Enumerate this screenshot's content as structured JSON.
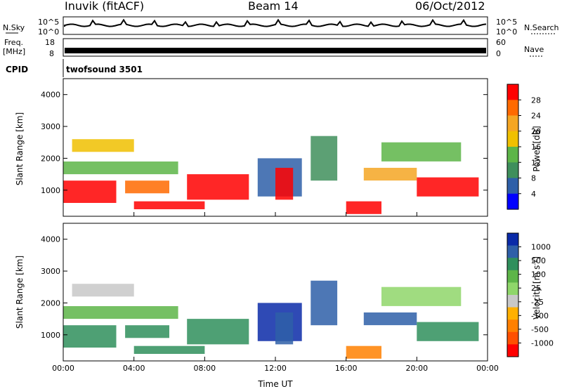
{
  "header": {
    "station": "Inuvik (fitACF)",
    "beam": "Beam 14",
    "date": "06/Oct/2012"
  },
  "status_panels": {
    "nsky_label": "N.Sky",
    "nsky_ticks": [
      "10^5",
      "10^0"
    ],
    "nsearch_label": "N.Search",
    "nsearch_ticks": [
      "10^5",
      "10^0"
    ],
    "freq_label_1": "Freq.",
    "freq_label_2": "[MHz]",
    "freq_ticks": [
      "18",
      "8"
    ],
    "nave_label": "Nave",
    "nave_ticks": [
      "60",
      "0"
    ],
    "cpid_label": "CPID",
    "cpid_value": "twofsound 3501"
  },
  "chart_data": [
    {
      "type": "heatmap",
      "parameter": "power",
      "ylabel": "Slant Range [km]",
      "xlabel": "",
      "ylim": [
        180,
        4500
      ],
      "xlim": [
        0,
        24
      ],
      "yticks": [
        "1000",
        "2000",
        "3000",
        "4000"
      ],
      "colorbar_label": "Power [dB]",
      "colorbar_ticks": [
        "28",
        "24",
        "20",
        "16",
        "12",
        "8",
        "4"
      ],
      "colorbar_colors": [
        "#ff0000",
        "#ff6a00",
        "#f5a623",
        "#f0c000",
        "#5db548",
        "#3f8f5c",
        "#2e5fa8",
        "#0000ff"
      ],
      "segments": [
        {
          "t0": 0.0,
          "t1": 3.0,
          "r0": 600,
          "r1": 1300,
          "level": 0
        },
        {
          "t0": 0.5,
          "t1": 4.0,
          "r0": 2200,
          "r1": 2600,
          "level": 3
        },
        {
          "t0": 0.0,
          "t1": 6.5,
          "r0": 1500,
          "r1": 1900,
          "level": 4
        },
        {
          "t0": 3.5,
          "t1": 6.0,
          "r0": 900,
          "r1": 1300,
          "level": 1
        },
        {
          "t0": 7.0,
          "t1": 10.5,
          "r0": 700,
          "r1": 1500,
          "level": 0
        },
        {
          "t0": 4.0,
          "t1": 8.0,
          "r0": 400,
          "r1": 650,
          "level": 0
        },
        {
          "t0": 11.0,
          "t1": 13.5,
          "r0": 800,
          "r1": 2000,
          "level": 6
        },
        {
          "t0": 12.0,
          "t1": 13.0,
          "r0": 700,
          "r1": 1700,
          "level": 0
        },
        {
          "t0": 14.0,
          "t1": 15.5,
          "r0": 1300,
          "r1": 2700,
          "level": 5
        },
        {
          "t0": 16.0,
          "t1": 18.0,
          "r0": 250,
          "r1": 650,
          "level": 0
        },
        {
          "t0": 17.0,
          "t1": 20.0,
          "r0": 1300,
          "r1": 1700,
          "level": 2
        },
        {
          "t0": 20.0,
          "t1": 23.5,
          "r0": 800,
          "r1": 1400,
          "level": 0
        },
        {
          "t0": 18.0,
          "t1": 22.5,
          "r0": 1900,
          "r1": 2500,
          "level": 4
        }
      ]
    },
    {
      "type": "heatmap",
      "parameter": "velocity",
      "ylabel": "Slant Range [km]",
      "xlabel": "Time UT",
      "ylim": [
        180,
        4500
      ],
      "xlim": [
        0,
        24
      ],
      "yticks": [
        "1000",
        "2000",
        "3000",
        "4000"
      ],
      "xticks": [
        "00:00",
        "04:00",
        "08:00",
        "12:00",
        "16:00",
        "20:00",
        "00:00"
      ],
      "colorbar_label": "Velocity [m s-1]",
      "colorbar_ticks": [
        "1000",
        "500",
        "100",
        "25",
        "-25",
        "-100",
        "-500",
        "-1000"
      ],
      "colorbar_colors": [
        "#0a2aa8",
        "#2e5fa8",
        "#2f8f5c",
        "#5db548",
        "#8fd66a",
        "#c8c8c8",
        "#ffb000",
        "#ff8000",
        "#ff5000",
        "#ff0000"
      ],
      "segments": [
        {
          "t0": 0.0,
          "t1": 3.0,
          "r0": 600,
          "r1": 1300,
          "level": 2
        },
        {
          "t0": 0.5,
          "t1": 4.0,
          "r0": 2200,
          "r1": 2600,
          "level": 5
        },
        {
          "t0": 0.0,
          "t1": 6.5,
          "r0": 1500,
          "r1": 1900,
          "level": 3
        },
        {
          "t0": 3.5,
          "t1": 6.0,
          "r0": 900,
          "r1": 1300,
          "level": 2
        },
        {
          "t0": 7.0,
          "t1": 10.5,
          "r0": 700,
          "r1": 1500,
          "level": 2
        },
        {
          "t0": 4.0,
          "t1": 8.0,
          "r0": 400,
          "r1": 650,
          "level": 2
        },
        {
          "t0": 11.0,
          "t1": 13.5,
          "r0": 800,
          "r1": 2000,
          "level": 0
        },
        {
          "t0": 12.0,
          "t1": 13.0,
          "r0": 700,
          "r1": 1700,
          "level": 1
        },
        {
          "t0": 14.0,
          "t1": 15.5,
          "r0": 1300,
          "r1": 2700,
          "level": 1
        },
        {
          "t0": 16.0,
          "t1": 18.0,
          "r0": 250,
          "r1": 650,
          "level": 7
        },
        {
          "t0": 17.0,
          "t1": 20.0,
          "r0": 1300,
          "r1": 1700,
          "level": 1
        },
        {
          "t0": 20.0,
          "t1": 23.5,
          "r0": 800,
          "r1": 1400,
          "level": 2
        },
        {
          "t0": 18.0,
          "t1": 22.5,
          "r0": 1900,
          "r1": 2500,
          "level": 4
        }
      ]
    }
  ]
}
